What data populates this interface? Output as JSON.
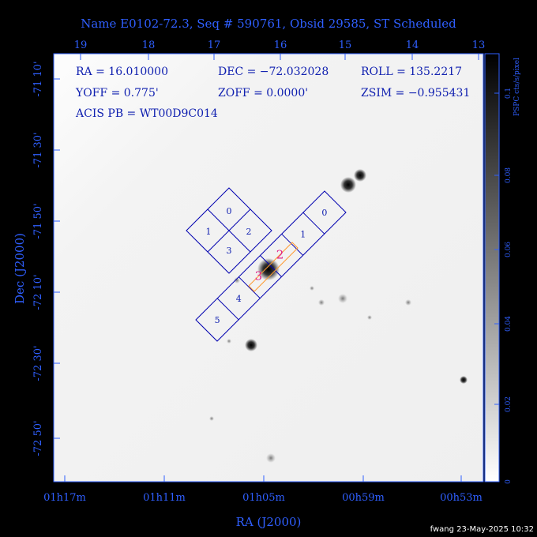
{
  "title": "Name E0102-72.3, Seq # 590761, Obsid 29585, ST Scheduled",
  "top_axis": {
    "labels": [
      "19",
      "18",
      "17",
      "16",
      "15",
      "14",
      "13"
    ]
  },
  "left_axis": {
    "title": "Dec (J2000)",
    "labels": [
      "-71 10'",
      "-71 30'",
      "-71 50'",
      "-72 10'",
      "-72 30'",
      "-72 50'"
    ]
  },
  "bottom_axis": {
    "title": "RA (J2000)",
    "labels": [
      "01h17m",
      "01h11m",
      "01h05m",
      "00h59m",
      "00h53m"
    ]
  },
  "info": {
    "ra": "RA = 16.010000",
    "dec": "DEC = −72.032028",
    "roll": "ROLL = 135.2217",
    "yoff": "YOFF =   0.775'",
    "zoff": "ZOFF =  0.0000'",
    "zsim": "ZSIM = −0.955431",
    "acis_pb": "ACIS PB = WT00D9C014"
  },
  "colorbar": {
    "title": "PSPC cts/s/pixel",
    "labels": [
      "0.1",
      "0.08",
      "0.06",
      "0.04",
      "0.02",
      "0"
    ]
  },
  "acis_i": {
    "chips": [
      "0",
      "1",
      "2",
      "3"
    ]
  },
  "acis_s": {
    "chips": [
      "0",
      "1",
      "2",
      "3",
      "4",
      "5"
    ]
  },
  "footer": "fwang 23-May-2025 10:32"
}
